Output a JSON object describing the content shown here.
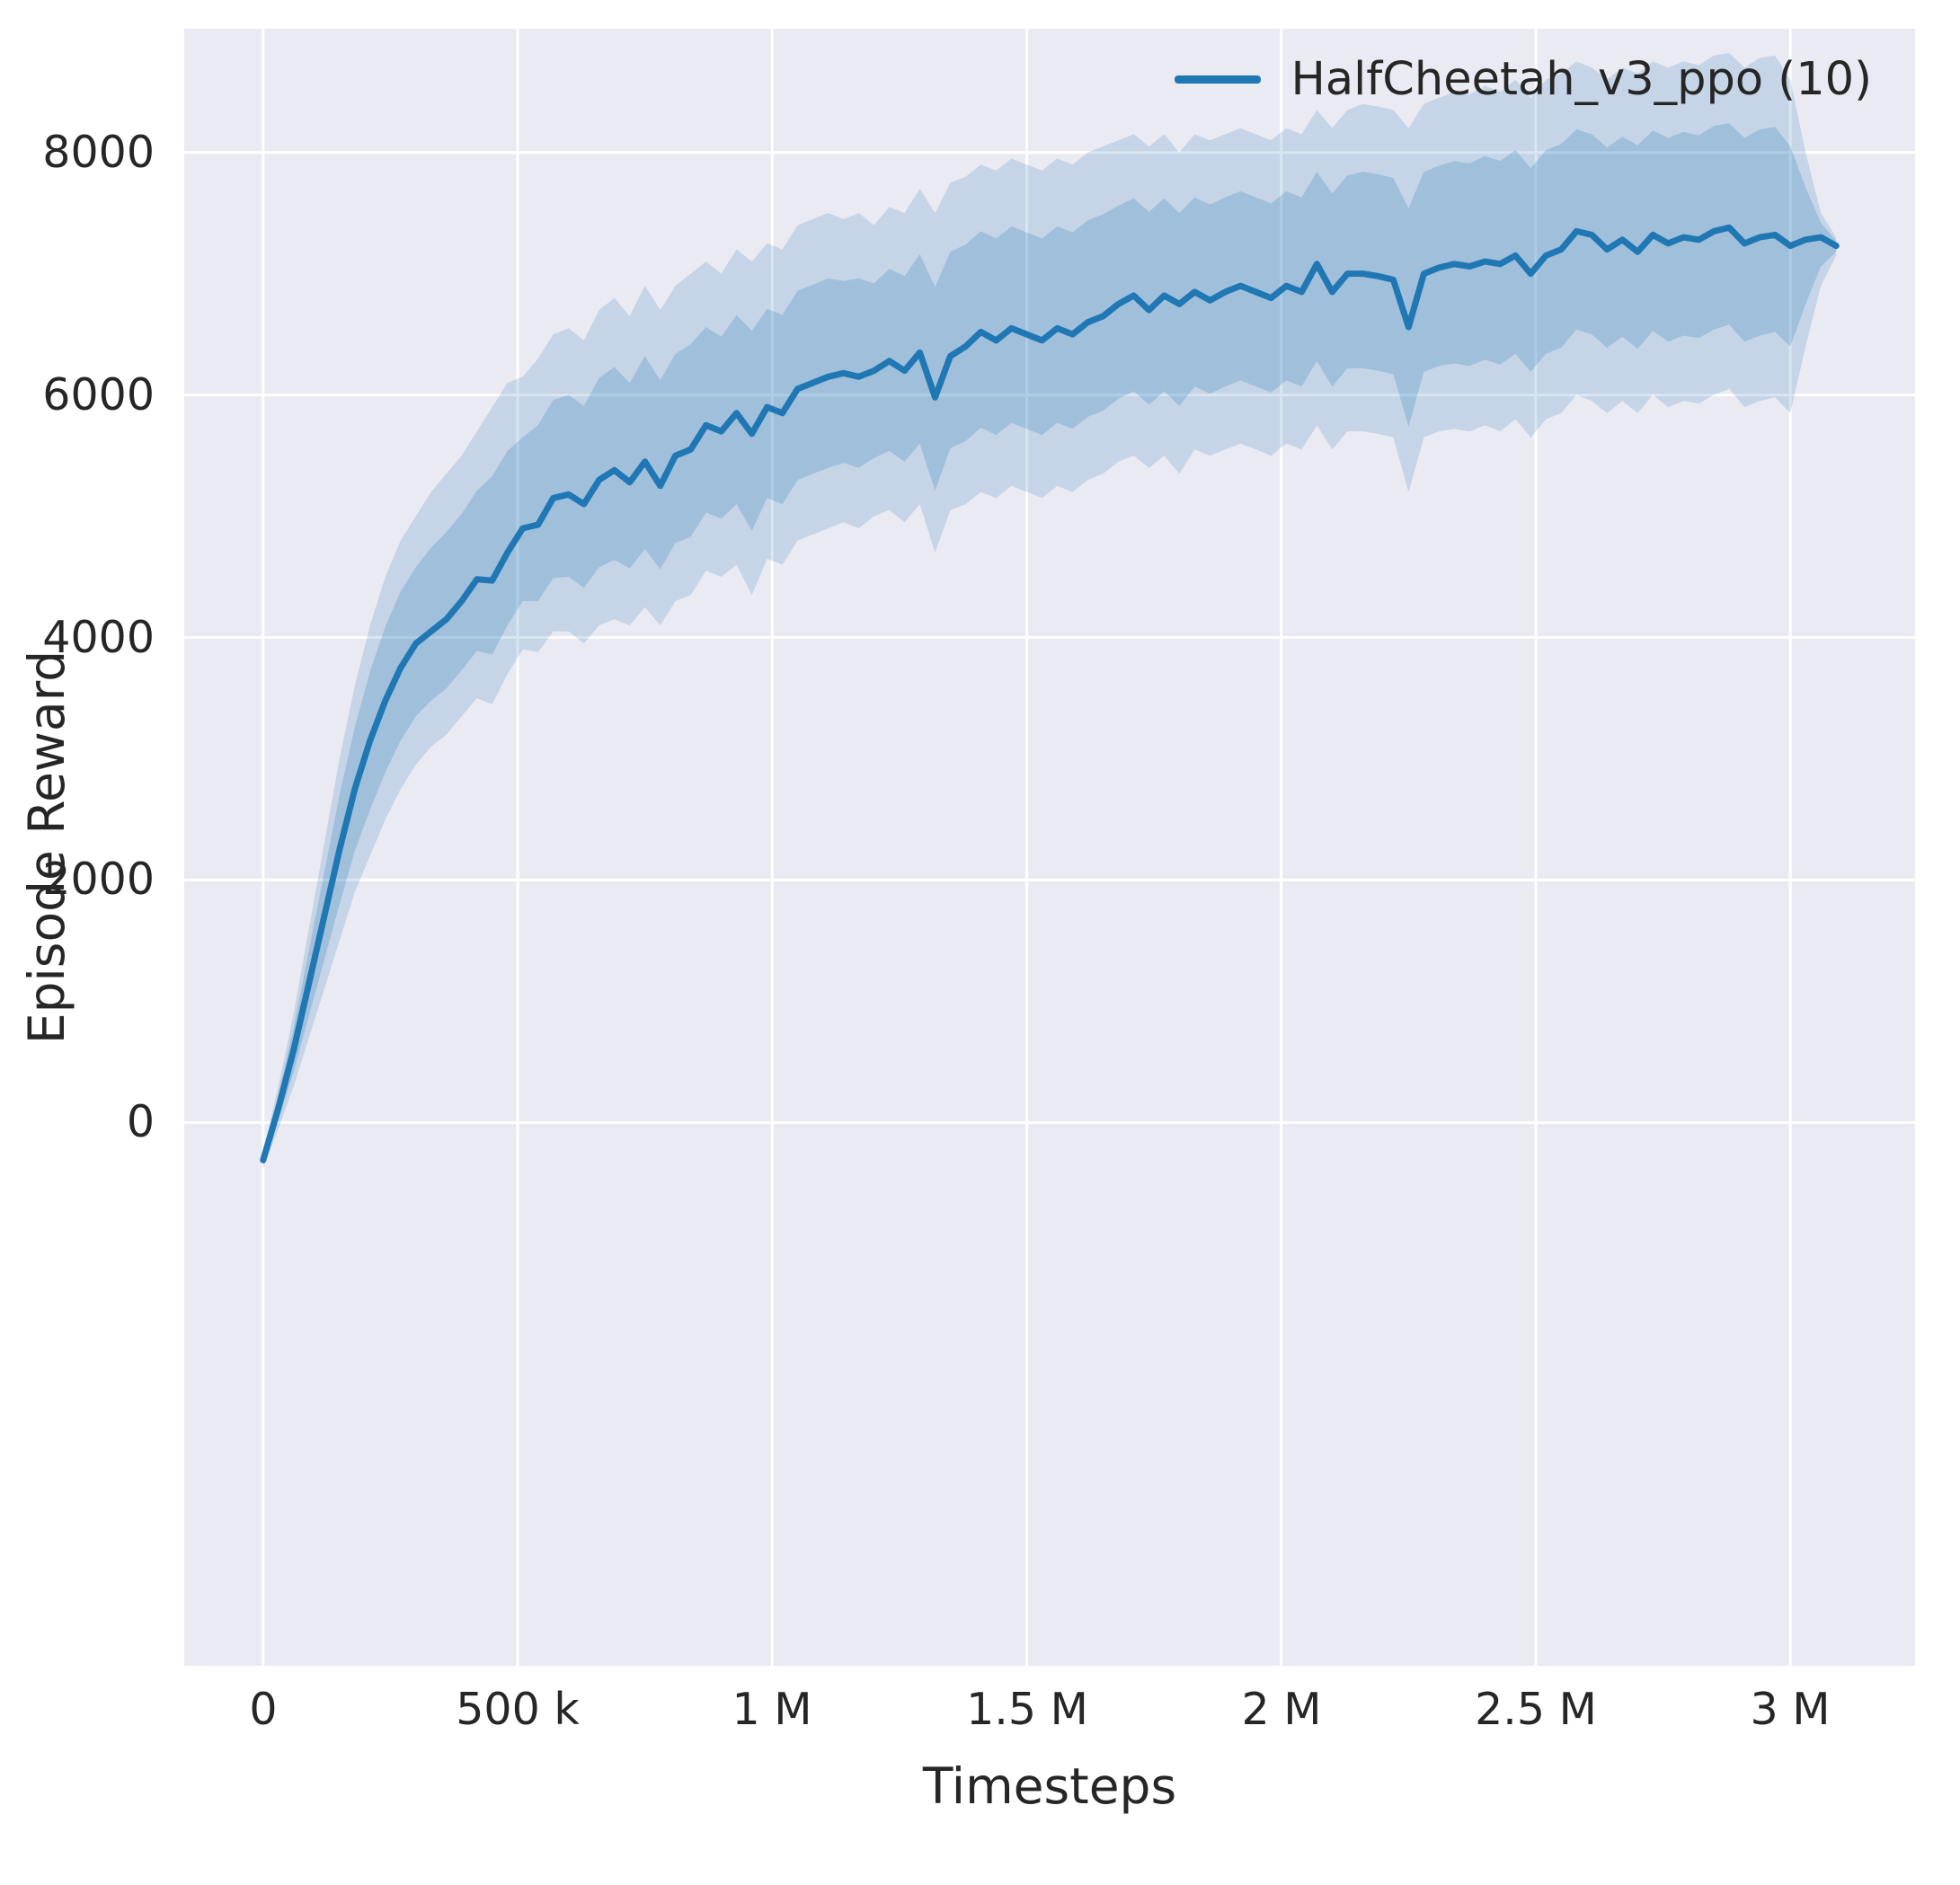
{
  "colors": {
    "line": "#1f77b4",
    "band": "#1f77b4",
    "plot_background": "#eaeaf2",
    "grid": "#ffffff",
    "text": "#262626"
  },
  "chart_data": {
    "type": "line",
    "title": "",
    "xlabel": "Timesteps",
    "ylabel": "Episode Reward",
    "grid": true,
    "legend_position": "upper right",
    "x_unit": "timesteps (values stored in thousands)",
    "xlim_thousands": [
      -155,
      3245
    ],
    "ylim": [
      -4480,
      9020
    ],
    "x_ticks": [
      {
        "value": 0,
        "label": "0"
      },
      {
        "value": 500,
        "label": "500 k"
      },
      {
        "value": 1000,
        "label": "1 M"
      },
      {
        "value": 1500,
        "label": "1.5 M"
      },
      {
        "value": 2000,
        "label": "2 M"
      },
      {
        "value": 2500,
        "label": "2.5 M"
      },
      {
        "value": 3000,
        "label": "3 M"
      }
    ],
    "y_ticks": [
      {
        "value": 0,
        "label": "0"
      },
      {
        "value": 2000,
        "label": "2000"
      },
      {
        "value": 4000,
        "label": "4000"
      },
      {
        "value": 6000,
        "label": "6000"
      },
      {
        "value": 8000,
        "label": "8000"
      }
    ],
    "series": [
      {
        "name": "HalfCheetah_v3_ppo (10)",
        "color": "#1f77b4",
        "x_thousands": [
          0,
          30,
          60,
          90,
          120,
          150,
          180,
          210,
          240,
          270,
          300,
          330,
          360,
          390,
          420,
          450,
          480,
          510,
          540,
          570,
          600,
          630,
          660,
          690,
          720,
          750,
          780,
          810,
          840,
          870,
          900,
          930,
          960,
          990,
          1020,
          1050,
          1080,
          1110,
          1140,
          1170,
          1200,
          1230,
          1260,
          1290,
          1320,
          1350,
          1380,
          1410,
          1440,
          1470,
          1500,
          1530,
          1560,
          1590,
          1620,
          1650,
          1680,
          1710,
          1740,
          1770,
          1800,
          1830,
          1860,
          1890,
          1920,
          1950,
          1980,
          2010,
          2040,
          2070,
          2100,
          2130,
          2160,
          2190,
          2220,
          2250,
          2280,
          2310,
          2340,
          2370,
          2400,
          2430,
          2460,
          2490,
          2520,
          2550,
          2580,
          2610,
          2640,
          2670,
          2700,
          2730,
          2760,
          2790,
          2820,
          2850,
          2880,
          2910,
          2940,
          2970,
          3000,
          3030,
          3060,
          3090
        ],
        "mean": [
          -310,
          120,
          600,
          1150,
          1700,
          2250,
          2750,
          3150,
          3480,
          3750,
          3950,
          4050,
          4150,
          4300,
          4480,
          4470,
          4700,
          4900,
          4930,
          5150,
          5180,
          5100,
          5300,
          5380,
          5280,
          5450,
          5250,
          5500,
          5550,
          5750,
          5700,
          5850,
          5680,
          5900,
          5850,
          6050,
          6100,
          6150,
          6180,
          6150,
          6200,
          6280,
          6200,
          6350,
          5980,
          6320,
          6400,
          6520,
          6450,
          6550,
          6500,
          6450,
          6550,
          6500,
          6600,
          6650,
          6750,
          6820,
          6700,
          6820,
          6750,
          6850,
          6780,
          6850,
          6900,
          6850,
          6800,
          6900,
          6850,
          7080,
          6850,
          7000,
          7000,
          6980,
          6950,
          6560,
          7000,
          7050,
          7080,
          7060,
          7100,
          7080,
          7150,
          7000,
          7150,
          7200,
          7350,
          7320,
          7200,
          7280,
          7180,
          7320,
          7250,
          7300,
          7280,
          7350,
          7380,
          7250,
          7300,
          7320,
          7230,
          7280,
          7300,
          7230
        ],
        "band_outer_upper": [
          -250,
          300,
          900,
          1600,
          2300,
          3000,
          3600,
          4100,
          4500,
          4800,
          5000,
          5200,
          5350,
          5500,
          5700,
          5900,
          6100,
          6150,
          6300,
          6500,
          6550,
          6450,
          6700,
          6800,
          6650,
          6900,
          6700,
          6900,
          7000,
          7100,
          7000,
          7200,
          7100,
          7250,
          7200,
          7400,
          7450,
          7500,
          7450,
          7500,
          7400,
          7550,
          7500,
          7700,
          7500,
          7750,
          7800,
          7900,
          7850,
          7950,
          7900,
          7850,
          7950,
          7900,
          8000,
          8050,
          8100,
          8150,
          8050,
          8150,
          8000,
          8150,
          8100,
          8150,
          8200,
          8150,
          8100,
          8200,
          8150,
          8350,
          8200,
          8350,
          8400,
          8380,
          8350,
          8200,
          8400,
          8450,
          8500,
          8480,
          8550,
          8500,
          8600,
          8450,
          8600,
          8650,
          8750,
          8700,
          8600,
          8700,
          8650,
          8750,
          8700,
          8750,
          8720,
          8800,
          8820,
          8700,
          8780,
          8800,
          8600,
          8000,
          7500,
          7300
        ],
        "band_outer_lower": [
          -380,
          -50,
          300,
          700,
          1100,
          1500,
          1900,
          2200,
          2500,
          2750,
          2950,
          3100,
          3200,
          3350,
          3500,
          3450,
          3700,
          3900,
          3880,
          4050,
          4050,
          3950,
          4100,
          4150,
          4100,
          4250,
          4100,
          4300,
          4350,
          4550,
          4500,
          4600,
          4350,
          4650,
          4600,
          4800,
          4850,
          4900,
          4950,
          4900,
          5000,
          5050,
          4950,
          5100,
          4700,
          5050,
          5100,
          5200,
          5150,
          5250,
          5200,
          5150,
          5250,
          5200,
          5300,
          5350,
          5450,
          5500,
          5400,
          5500,
          5350,
          5550,
          5500,
          5550,
          5600,
          5550,
          5500,
          5600,
          5550,
          5750,
          5550,
          5700,
          5700,
          5680,
          5650,
          5200,
          5650,
          5700,
          5720,
          5700,
          5750,
          5700,
          5800,
          5650,
          5800,
          5850,
          6000,
          5950,
          5850,
          5950,
          5850,
          6000,
          5900,
          5950,
          5930,
          6000,
          6050,
          5900,
          5950,
          5980,
          5850,
          6400,
          6900,
          7150
        ],
        "band_inner_upper": [
          -270,
          230,
          780,
          1420,
          2060,
          2700,
          3260,
          3720,
          4090,
          4380,
          4580,
          4740,
          4870,
          5020,
          5210,
          5330,
          5540,
          5650,
          5750,
          5960,
          6000,
          5910,
          6140,
          6230,
          6100,
          6320,
          6120,
          6340,
          6420,
          6560,
          6480,
          6660,
          6530,
          6710,
          6660,
          6860,
          6910,
          6960,
          6940,
          6960,
          6920,
          7040,
          6980,
          7160,
          6890,
          7180,
          7240,
          7350,
          7290,
          7390,
          7340,
          7290,
          7390,
          7340,
          7440,
          7490,
          7560,
          7620,
          7510,
          7620,
          7500,
          7630,
          7570,
          7630,
          7680,
          7630,
          7580,
          7680,
          7630,
          7840,
          7660,
          7810,
          7840,
          7820,
          7790,
          7540,
          7840,
          7890,
          7930,
          7910,
          7970,
          7930,
          8020,
          7870,
          8020,
          8070,
          8190,
          8150,
          8040,
          8130,
          8060,
          8180,
          8120,
          8170,
          8140,
          8220,
          8240,
          8120,
          8190,
          8210,
          8050,
          7710,
          7420,
          7270
        ],
        "band_inner_lower": [
          -350,
          20,
          420,
          880,
          1340,
          1800,
          2240,
          2580,
          2890,
          3150,
          3350,
          3480,
          3580,
          3730,
          3890,
          3860,
          4100,
          4300,
          4300,
          4490,
          4500,
          4410,
          4580,
          4640,
          4570,
          4730,
          4560,
          4780,
          4830,
          5030,
          4980,
          5100,
          4880,
          5150,
          5100,
          5300,
          5350,
          5400,
          5440,
          5400,
          5480,
          5540,
          5450,
          5600,
          5210,
          5560,
          5620,
          5730,
          5670,
          5770,
          5720,
          5670,
          5770,
          5720,
          5820,
          5870,
          5970,
          6030,
          5920,
          6030,
          5910,
          6070,
          6010,
          6070,
          6120,
          6070,
          6020,
          6120,
          6070,
          6280,
          6070,
          6220,
          6220,
          6200,
          6170,
          5740,
          6190,
          6240,
          6260,
          6240,
          6290,
          6250,
          6340,
          6190,
          6340,
          6390,
          6540,
          6500,
          6390,
          6480,
          6380,
          6530,
          6440,
          6490,
          6470,
          6540,
          6580,
          6440,
          6490,
          6520,
          6400,
          6750,
          7060,
          7180
        ]
      }
    ]
  }
}
